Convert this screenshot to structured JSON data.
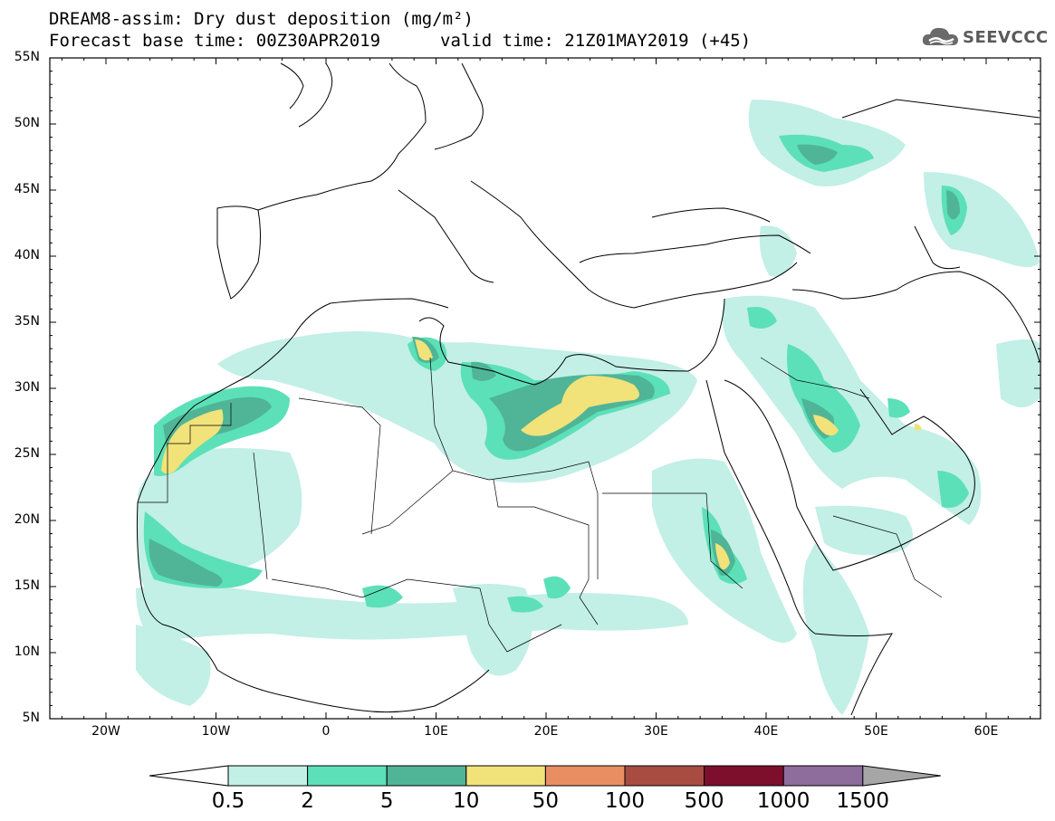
{
  "title_line1": "DREAM8-assim: Dry dust deposition (mg/m²)",
  "title_line2_left": "Forecast base time: 00Z30APR2019",
  "title_line2_right": "valid time: 21Z01MAY2019 (+45)",
  "logo_text": "SEEVCCC",
  "logo_icon": "cloud-logo-icon",
  "lat_labels": [
    "55N",
    "50N",
    "45N",
    "40N",
    "35N",
    "30N",
    "25N",
    "20N",
    "15N",
    "10N",
    "5N"
  ],
  "lon_labels": [
    "20W",
    "10W",
    "0",
    "10E",
    "20E",
    "30E",
    "40E",
    "50E",
    "60E"
  ],
  "colorbar": {
    "labels": [
      "0.5",
      "2",
      "5",
      "10",
      "50",
      "100",
      "500",
      "1000",
      "1500"
    ],
    "colors": [
      "#c2efe6",
      "#5ce0b8",
      "#4fb596",
      "#f2e27a",
      "#e98e63",
      "#a84c42",
      "#7e0f2c",
      "#8e6c9c",
      "#a6a6a6"
    ]
  }
}
